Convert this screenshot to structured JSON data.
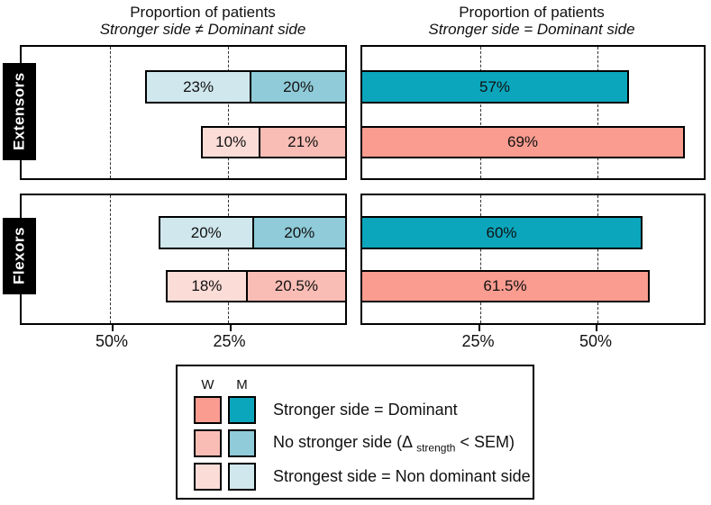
{
  "colors": {
    "W": {
      "dominant": "#FA9C90",
      "no_stronger": "#FABDB5",
      "strongest_nondominant": "#FCDCD7"
    },
    "M": {
      "dominant": "#0BA6BC",
      "no_stronger": "#8FCBD9",
      "strongest_nondominant": "#CFE7ED"
    },
    "border": "#000000",
    "row_label_bg": "#000000",
    "row_label_text": "#FFFFFF"
  },
  "legend": {
    "columns": [
      "W",
      "M"
    ],
    "rows": [
      {
        "key": "dominant",
        "label": "Stronger side = Dominant"
      },
      {
        "key": "no_stronger",
        "label_prefix": "No stronger side (Δ ",
        "label_sub": "strength",
        "label_suffix": " < SEM)"
      },
      {
        "key": "strongest_nondominant",
        "label": "Strongest side = Non dominant side"
      }
    ]
  },
  "chart_data": {
    "type": "bar",
    "orientation": "horizontal",
    "unit": "%",
    "row_groups": [
      "Extensors",
      "Flexors"
    ],
    "panels": [
      {
        "side": "left",
        "title": "Proportion of patients",
        "subtitle": "Stronger side ≠ Dominant side",
        "bars_grow": "leftward",
        "axis_ticks": [
          50,
          25
        ],
        "axis_tick_labels": [
          "50%",
          "25%"
        ],
        "rows": [
          {
            "group": "Extensors",
            "bars": [
              {
                "series": "M",
                "segments": [
                  {
                    "key": "strongest_nondominant",
                    "value": 23,
                    "label": "23%"
                  },
                  {
                    "key": "no_stronger",
                    "value": 20,
                    "label": "20%"
                  }
                ]
              },
              {
                "series": "W",
                "segments": [
                  {
                    "key": "strongest_nondominant",
                    "value": 10,
                    "label": "10%"
                  },
                  {
                    "key": "no_stronger",
                    "value": 21,
                    "label": "21%"
                  }
                ]
              }
            ]
          },
          {
            "group": "Flexors",
            "bars": [
              {
                "series": "M",
                "segments": [
                  {
                    "key": "strongest_nondominant",
                    "value": 20,
                    "label": "20%"
                  },
                  {
                    "key": "no_stronger",
                    "value": 20,
                    "label": "20%"
                  }
                ]
              },
              {
                "series": "W",
                "segments": [
                  {
                    "key": "strongest_nondominant",
                    "value": 18,
                    "label": "18%"
                  },
                  {
                    "key": "no_stronger",
                    "value": 20.5,
                    "label": "20.5%"
                  }
                ]
              }
            ]
          }
        ]
      },
      {
        "side": "right",
        "title": "Proportion of patients",
        "subtitle": "Stronger side = Dominant side",
        "bars_grow": "rightward",
        "axis_ticks": [
          25,
          50
        ],
        "axis_tick_labels": [
          "25%",
          "50%"
        ],
        "rows": [
          {
            "group": "Extensors",
            "bars": [
              {
                "series": "M",
                "segments": [
                  {
                    "key": "dominant",
                    "value": 57,
                    "label": "57%"
                  }
                ]
              },
              {
                "series": "W",
                "segments": [
                  {
                    "key": "dominant",
                    "value": 69,
                    "label": "69%"
                  }
                ]
              }
            ]
          },
          {
            "group": "Flexors",
            "bars": [
              {
                "series": "M",
                "segments": [
                  {
                    "key": "dominant",
                    "value": 60,
                    "label": "60%"
                  }
                ]
              },
              {
                "series": "W",
                "segments": [
                  {
                    "key": "dominant",
                    "value": 61.5,
                    "label": "61.5%"
                  }
                ]
              }
            ]
          }
        ]
      }
    ]
  }
}
